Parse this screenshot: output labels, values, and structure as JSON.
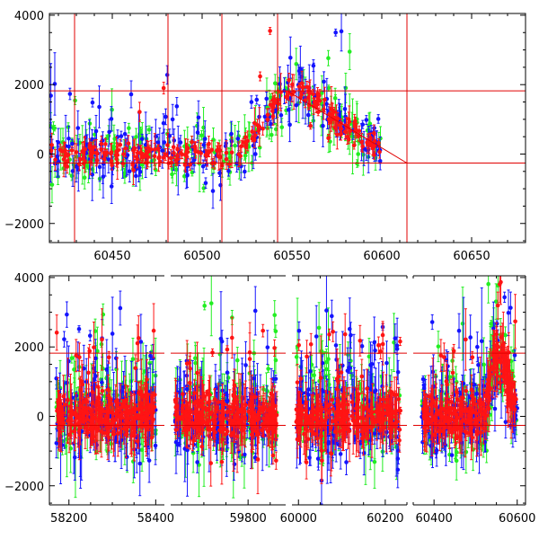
{
  "chart_data": [
    {
      "type": "scatter",
      "title": "",
      "xlabel": "",
      "ylabel": "",
      "xlim": [
        60415,
        60680
      ],
      "ylim": [
        -2550,
        4050
      ],
      "xticks": [
        60450,
        60500,
        60550,
        60600,
        60650
      ],
      "yticks": [
        -2000,
        0,
        2000,
        4000
      ],
      "colors": {
        "blue": "#1414ff",
        "green": "#22ee22",
        "red": "#ff1414",
        "line": "#e00000"
      },
      "hlines": [
        1820,
        -260
      ],
      "vlines": [
        60429,
        60481,
        60511,
        60542,
        60614
      ],
      "trend": [
        [
          60548,
          1800
        ],
        [
          60614,
          -260
        ],
        [
          60680,
          -260
        ]
      ],
      "series": [
        {
          "color": "blue",
          "segments": [
            [
              60415,
              60600,
              380
            ]
          ]
        },
        {
          "color": "green",
          "segments": [
            [
              60415,
              60600,
              380
            ]
          ]
        },
        {
          "color": "red",
          "segments": [
            [
              60415,
              60600,
              180
            ]
          ]
        }
      ],
      "bump": {
        "center": 60548,
        "peak": 1850,
        "rise": 17,
        "fall": 34,
        "width": 180
      }
    },
    {
      "type": "scatter",
      "title": "",
      "xlabel": "",
      "ylabel": "",
      "broken_axis": true,
      "ylim": [
        -2550,
        4050
      ],
      "yticks": [
        -2000,
        0,
        2000,
        4000
      ],
      "panels": [
        {
          "xlim": [
            58155,
            58420
          ],
          "xticks": [
            58200,
            58400
          ],
          "data_range": [
            58170,
            58400
          ]
        },
        {
          "xlim": [
            59625,
            59885
          ],
          "xticks": [
            59800
          ],
          "data_range": [
            59635,
            59865
          ]
        },
        {
          "xlim": [
            59985,
            60250
          ],
          "xticks": [
            60000,
            60200
          ],
          "data_range": [
            59995,
            60235
          ]
        },
        {
          "xlim": [
            60350,
            60620
          ],
          "xticks": [
            60400,
            60600
          ],
          "data_range": [
            60370,
            60600
          ]
        }
      ],
      "colors": {
        "blue": "#1414ff",
        "green": "#22ee22",
        "red": "#ff1414",
        "line": "#e00000"
      },
      "hlines": [
        1820,
        -260
      ],
      "bump": {
        "center": 60548,
        "peak": 1850,
        "rise": 17,
        "fall": 34,
        "width": 180
      }
    }
  ]
}
